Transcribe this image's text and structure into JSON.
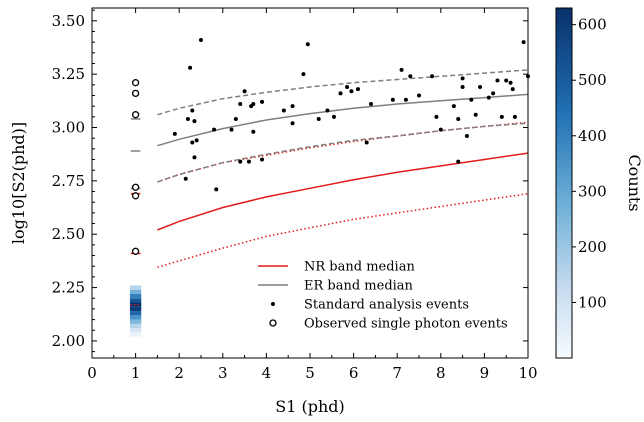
{
  "chart_data": {
    "type": "scatter",
    "xlabel": "S1 (phd)",
    "ylabel": "log10[S2(phd)]",
    "xlim": [
      0,
      10
    ],
    "ylim": [
      1.92,
      3.56
    ],
    "x_ticks": [
      "0",
      "1",
      "2",
      "3",
      "4",
      "5",
      "6",
      "7",
      "8",
      "9",
      "10"
    ],
    "y_ticks": [
      "2.00",
      "2.25",
      "2.50",
      "2.75",
      "3.00",
      "3.25",
      "3.50"
    ],
    "colorbar": {
      "label": "Counts",
      "range": [
        0,
        630
      ],
      "ticks": [
        "100",
        "200",
        "300",
        "400",
        "500",
        "600"
      ],
      "color_low": "#f7fbff",
      "color_high": "#08306b"
    },
    "colors": {
      "nr": "#e31a1c",
      "er": "#7f7f7f",
      "points": "#000000"
    },
    "legend": {
      "position": "lower-right",
      "entries": [
        {
          "label": "NR band median",
          "marker": "line",
          "color": "#e31a1c"
        },
        {
          "label": "ER band median",
          "marker": "line",
          "color": "#7f7f7f"
        },
        {
          "label": "Standard analysis events",
          "marker": "dot",
          "color": "#000000"
        },
        {
          "label": "Observed single photon events",
          "marker": "circle",
          "color": "#000000"
        }
      ]
    },
    "bands": [
      {
        "name": "NR band median",
        "style": "solid",
        "color": "#e31a1c",
        "x": [
          1.5,
          2,
          3,
          4,
          5,
          6,
          7,
          8,
          9,
          10
        ],
        "y": [
          2.52,
          2.56,
          2.625,
          2.675,
          2.715,
          2.755,
          2.79,
          2.82,
          2.85,
          2.88
        ]
      },
      {
        "style": "dotted",
        "color": "#e31a1c",
        "x": [
          1.5,
          2,
          3,
          4,
          5,
          6,
          7,
          8,
          9,
          10
        ],
        "y": [
          2.345,
          2.375,
          2.435,
          2.49,
          2.53,
          2.57,
          2.6,
          2.63,
          2.66,
          2.69
        ]
      },
      {
        "style": "dotted",
        "color": "#e31a1c",
        "x": [
          1.5,
          2,
          3,
          4,
          5,
          6,
          7,
          8,
          9,
          10
        ],
        "y": [
          2.745,
          2.78,
          2.835,
          2.87,
          2.905,
          2.935,
          2.96,
          2.985,
          3.005,
          3.025
        ]
      },
      {
        "name": "ER band median",
        "style": "solid",
        "color": "#7f7f7f",
        "x": [
          1.5,
          2,
          3,
          4,
          5,
          6,
          7,
          8,
          9,
          10
        ],
        "y": [
          2.915,
          2.945,
          2.995,
          3.035,
          3.065,
          3.09,
          3.11,
          3.125,
          3.14,
          3.155
        ]
      },
      {
        "style": "dashed",
        "color": "#7f7f7f",
        "x": [
          1.5,
          2,
          3,
          4,
          5,
          6,
          7,
          8,
          9,
          10
        ],
        "y": [
          3.06,
          3.09,
          3.135,
          3.165,
          3.19,
          3.21,
          3.225,
          3.24,
          3.255,
          3.27
        ]
      },
      {
        "style": "dashed",
        "color": "#7f7f7f",
        "x": [
          1.5,
          2,
          3,
          4,
          5,
          6,
          7,
          8,
          9,
          10
        ],
        "y": [
          2.745,
          2.78,
          2.835,
          2.875,
          2.91,
          2.94,
          2.96,
          2.985,
          3.005,
          3.02
        ]
      }
    ],
    "s1_single_photon_markers": [
      {
        "x": 1,
        "y": 2.41,
        "color": "#e31a1c",
        "style": "solid"
      },
      {
        "x": 1,
        "y": 2.69,
        "color": "#e31a1c",
        "style": "solid"
      },
      {
        "x": 1,
        "y": 2.89,
        "color": "#7f7f7f",
        "style": "solid"
      },
      {
        "x": 1,
        "y": 3.04,
        "color": "#7f7f7f",
        "style": "solid"
      },
      {
        "x": 1,
        "y": 2.715,
        "color": "#7f7f7f",
        "style": "solid"
      }
    ],
    "heatmap": {
      "x": 1,
      "y_bins": [
        2.03,
        2.05,
        2.07,
        2.09,
        2.11,
        2.13,
        2.15,
        2.17,
        2.19,
        2.21,
        2.23,
        2.25
      ],
      "counts": [
        30,
        80,
        150,
        250,
        350,
        470,
        590,
        630,
        520,
        400,
        270,
        150
      ]
    },
    "observed_single_photon_events": [
      {
        "x": 1,
        "y": 3.21
      },
      {
        "x": 1,
        "y": 3.16
      },
      {
        "x": 1,
        "y": 3.06
      },
      {
        "x": 1,
        "y": 2.72
      },
      {
        "x": 1,
        "y": 2.68
      },
      {
        "x": 1,
        "y": 2.42
      }
    ],
    "standard_analysis_events": [
      {
        "x": 1.9,
        "y": 2.97
      },
      {
        "x": 2.15,
        "y": 2.76
      },
      {
        "x": 2.2,
        "y": 3.04
      },
      {
        "x": 2.25,
        "y": 3.28
      },
      {
        "x": 2.3,
        "y": 3.08
      },
      {
        "x": 2.3,
        "y": 2.93
      },
      {
        "x": 2.35,
        "y": 2.86
      },
      {
        "x": 2.35,
        "y": 3.03
      },
      {
        "x": 2.4,
        "y": 2.94
      },
      {
        "x": 2.5,
        "y": 3.41
      },
      {
        "x": 2.8,
        "y": 2.99
      },
      {
        "x": 2.85,
        "y": 2.71
      },
      {
        "x": 3.2,
        "y": 2.99
      },
      {
        "x": 3.3,
        "y": 3.04
      },
      {
        "x": 3.4,
        "y": 2.84
      },
      {
        "x": 3.4,
        "y": 3.11
      },
      {
        "x": 3.5,
        "y": 3.17
      },
      {
        "x": 3.6,
        "y": 2.84
      },
      {
        "x": 3.65,
        "y": 3.1
      },
      {
        "x": 3.7,
        "y": 3.11
      },
      {
        "x": 3.7,
        "y": 2.98
      },
      {
        "x": 3.9,
        "y": 3.12
      },
      {
        "x": 3.9,
        "y": 2.85
      },
      {
        "x": 4.4,
        "y": 3.08
      },
      {
        "x": 4.6,
        "y": 3.02
      },
      {
        "x": 4.6,
        "y": 3.1
      },
      {
        "x": 4.85,
        "y": 3.25
      },
      {
        "x": 4.95,
        "y": 3.39
      },
      {
        "x": 5.2,
        "y": 3.04
      },
      {
        "x": 5.4,
        "y": 3.08
      },
      {
        "x": 5.55,
        "y": 3.05
      },
      {
        "x": 5.7,
        "y": 3.16
      },
      {
        "x": 5.85,
        "y": 3.19
      },
      {
        "x": 5.95,
        "y": 3.17
      },
      {
        "x": 6.1,
        "y": 3.18
      },
      {
        "x": 6.3,
        "y": 2.93
      },
      {
        "x": 6.4,
        "y": 3.11
      },
      {
        "x": 6.9,
        "y": 3.13
      },
      {
        "x": 7.1,
        "y": 3.27
      },
      {
        "x": 7.2,
        "y": 3.13
      },
      {
        "x": 7.3,
        "y": 3.24
      },
      {
        "x": 7.5,
        "y": 3.15
      },
      {
        "x": 7.8,
        "y": 3.24
      },
      {
        "x": 7.9,
        "y": 3.05
      },
      {
        "x": 8.0,
        "y": 2.99
      },
      {
        "x": 8.3,
        "y": 3.1
      },
      {
        "x": 8.4,
        "y": 2.84
      },
      {
        "x": 8.4,
        "y": 3.04
      },
      {
        "x": 8.5,
        "y": 3.23
      },
      {
        "x": 8.5,
        "y": 3.19
      },
      {
        "x": 8.6,
        "y": 2.96
      },
      {
        "x": 8.7,
        "y": 3.13
      },
      {
        "x": 8.8,
        "y": 3.06
      },
      {
        "x": 8.9,
        "y": 3.19
      },
      {
        "x": 9.1,
        "y": 3.14
      },
      {
        "x": 9.2,
        "y": 3.16
      },
      {
        "x": 9.3,
        "y": 3.22
      },
      {
        "x": 9.4,
        "y": 3.05
      },
      {
        "x": 9.5,
        "y": 3.22
      },
      {
        "x": 9.6,
        "y": 3.21
      },
      {
        "x": 9.65,
        "y": 3.18
      },
      {
        "x": 9.7,
        "y": 3.05
      },
      {
        "x": 9.9,
        "y": 3.4
      },
      {
        "x": 10.0,
        "y": 3.24
      }
    ]
  }
}
